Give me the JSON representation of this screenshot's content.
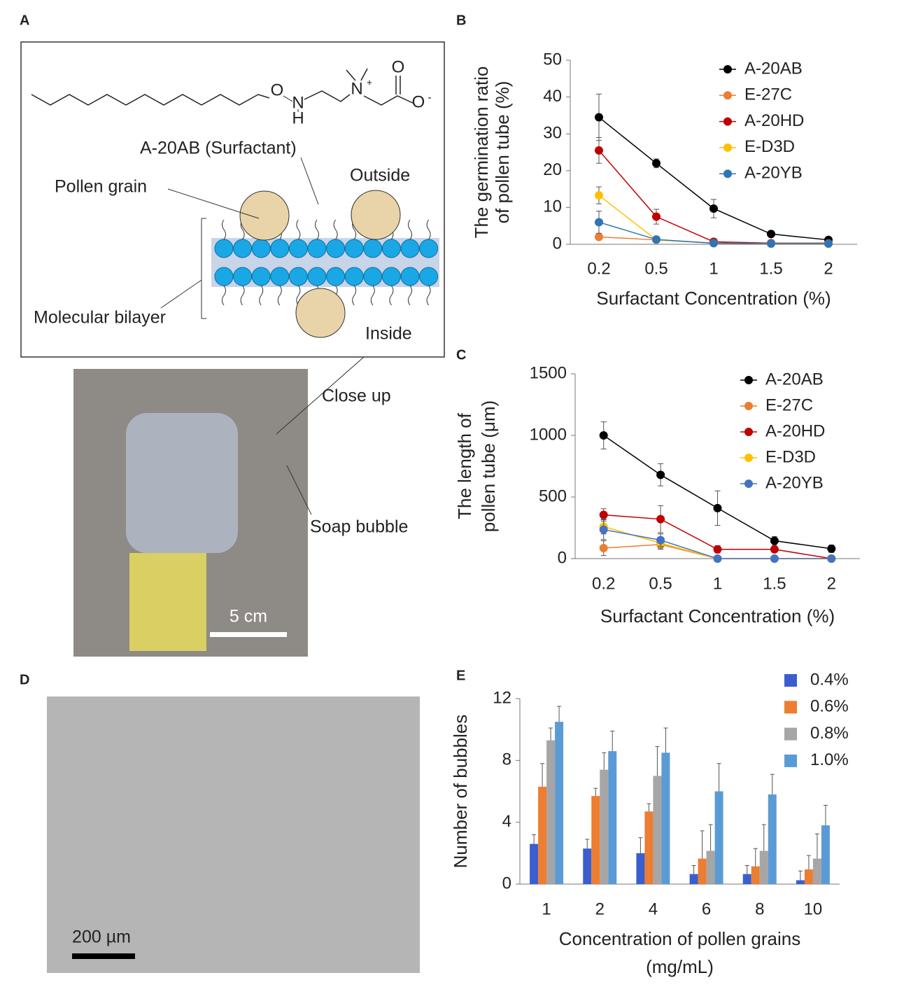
{
  "panel_labels": [
    "A",
    "B",
    "C",
    "D",
    "E"
  ],
  "diagram": {
    "structure_atoms": [
      "O",
      "N",
      "H",
      "N",
      "+",
      "O",
      "O",
      "-"
    ],
    "labels": {
      "surfactant": "A-20AB (Surfactant)",
      "pollen": "Pollen grain",
      "outside": "Outside",
      "bilayer": "Molecular bilayer",
      "inside": "Inside",
      "close_up": "Close up",
      "soap_bubble": "Soap bubble",
      "scale_photo": "5 cm"
    }
  },
  "micrograph": {
    "scale": "200 µm"
  },
  "chart_data": [
    {
      "type": "line",
      "ylabel": [
        "The germination ratio",
        "of pollen tube (%)"
      ],
      "xlabel": [
        "Surfactant Concentration (%)"
      ],
      "categories": [
        "0.2",
        "0.5",
        "1",
        "1.5",
        "2"
      ],
      "ylim": [
        0,
        50
      ],
      "yticks": [
        0,
        10,
        20,
        30,
        40,
        50
      ],
      "series": [
        {
          "name": "A-20AB",
          "color": "#000000",
          "values": [
            34.5,
            22,
            9.7,
            2.8,
            1.2
          ],
          "errors": [
            6.3,
            1.2,
            2.5,
            0.5,
            0.4
          ]
        },
        {
          "name": "E-27C",
          "color": "#ed7d31",
          "values": [
            2,
            1.2,
            0.3,
            0.2,
            0.2
          ],
          "errors": [
            0.5,
            0.3,
            0.2,
            0.1,
            0.1
          ]
        },
        {
          "name": "A-20HD",
          "color": "#c00000",
          "values": [
            25.5,
            7.5,
            0.7,
            0.3,
            0.3
          ],
          "errors": [
            3.5,
            2,
            0.5,
            0.2,
            0.2
          ]
        },
        {
          "name": "E-D3D",
          "color": "#ffc000",
          "values": [
            13.3,
            1.2,
            0.3,
            0.2,
            0.2
          ],
          "errors": [
            2.3,
            0.3,
            0.2,
            0.1,
            0.1
          ]
        },
        {
          "name": "A-20YB",
          "color": "#2e75b6",
          "values": [
            6,
            1.3,
            0.3,
            0.2,
            0.2
          ],
          "errors": [
            3,
            0.3,
            0.2,
            0.1,
            0.1
          ]
        }
      ]
    },
    {
      "type": "line",
      "ylabel": [
        "The length of",
        "pollen tube (μm)"
      ],
      "xlabel": [
        "Surfactant Concentration (%)"
      ],
      "categories": [
        "0.2",
        "0.5",
        "1",
        "1.5",
        "2"
      ],
      "ylim": [
        0,
        1500
      ],
      "yticks": [
        0,
        500,
        1000,
        1500
      ],
      "series": [
        {
          "name": "A-20AB",
          "color": "#000000",
          "values": [
            1000,
            680,
            410,
            145,
            80
          ],
          "errors": [
            110,
            90,
            140,
            35,
            30
          ]
        },
        {
          "name": "E-27C",
          "color": "#ed7d31",
          "values": [
            85,
            115,
            0,
            0,
            0
          ],
          "errors": [
            60,
            40,
            0,
            0,
            0
          ]
        },
        {
          "name": "A-20HD",
          "color": "#c00000",
          "values": [
            355,
            320,
            75,
            75,
            0
          ],
          "errors": [
            50,
            110,
            30,
            20,
            0
          ]
        },
        {
          "name": "E-D3D",
          "color": "#ffc000",
          "values": [
            260,
            125,
            0,
            0,
            0
          ],
          "errors": [
            60,
            40,
            0,
            0,
            0
          ]
        },
        {
          "name": "A-20YB",
          "color": "#4472c4",
          "values": [
            235,
            150,
            0,
            0,
            0
          ],
          "errors": [
            80,
            50,
            0,
            0,
            0
          ]
        }
      ]
    },
    {
      "type": "bar",
      "ylabel": [
        "Number of bubbles"
      ],
      "xlabel": [
        "Concentration of pollen grains",
        "(mg/mL)"
      ],
      "categories": [
        "1",
        "2",
        "4",
        "6",
        "8",
        "10"
      ],
      "ylim": [
        0,
        12
      ],
      "yticks": [
        0,
        4,
        8,
        12
      ],
      "series": [
        {
          "name": "0.4%",
          "color": "#3a5fcd",
          "values": [
            2.6,
            2.3,
            2.0,
            0.65,
            0.65,
            0.25
          ],
          "errors": [
            0.6,
            0.6,
            1.0,
            0.55,
            0.55,
            0.6
          ]
        },
        {
          "name": "0.6%",
          "color": "#ed7d31",
          "values": [
            6.3,
            5.7,
            4.7,
            1.65,
            1.15,
            0.95
          ],
          "errors": [
            1.5,
            0.5,
            0.5,
            1.8,
            1.15,
            0.9
          ]
        },
        {
          "name": "0.8%",
          "color": "#a6a6a6",
          "values": [
            9.3,
            7.4,
            7.0,
            2.15,
            2.15,
            1.65
          ],
          "errors": [
            0.8,
            1.1,
            1.9,
            1.7,
            1.7,
            1.6
          ]
        },
        {
          "name": "1.0%",
          "color": "#5b9bd5",
          "values": [
            10.5,
            8.6,
            8.5,
            6.0,
            5.8,
            3.8
          ],
          "errors": [
            1.0,
            1.3,
            1.6,
            1.8,
            1.3,
            1.3
          ]
        }
      ]
    }
  ]
}
